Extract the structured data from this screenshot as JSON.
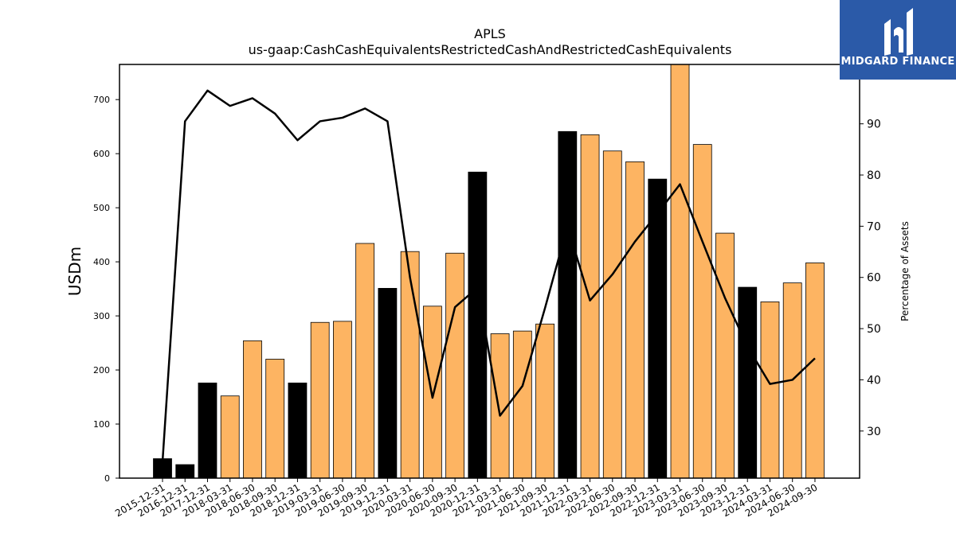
{
  "chart_data": {
    "type": "bar",
    "title": "APLS",
    "subtitle": "us-gaap:CashCashEquivalentsRestrictedCashAndRestrictedCashEquivalents",
    "ylabel": "USDm",
    "y2label": "Percentage of Assets",
    "ylim": [
      0,
      765
    ],
    "y2lim": [
      20.8,
      101.6
    ],
    "yticks": [
      0,
      100,
      200,
      300,
      400,
      500,
      600,
      700
    ],
    "y2ticks": [
      30,
      40,
      50,
      60,
      70,
      80,
      90
    ],
    "categories": [
      "2015-12-31",
      "2016-12-31",
      "2017-12-31",
      "2018-03-31",
      "2018-06-30",
      "2018-09-30",
      "2018-12-31",
      "2019-03-31",
      "2019-06-30",
      "2019-09-30",
      "2019-12-31",
      "2020-03-31",
      "2020-06-30",
      "2020-09-30",
      "2020-12-31",
      "2021-03-31",
      "2021-06-30",
      "2021-09-30",
      "2021-12-31",
      "2022-03-31",
      "2022-06-30",
      "2022-09-30",
      "2022-12-31",
      "2023-03-31",
      "2023-06-30",
      "2023-09-30",
      "2023-12-31",
      "2024-03-31",
      "2024-06-30",
      "2024-09-30"
    ],
    "series": [
      {
        "type": "bar",
        "values": [
          36,
          25,
          176,
          152,
          254,
          220,
          176,
          288,
          290,
          434,
          351,
          419,
          318,
          416,
          566,
          267,
          272,
          285,
          641,
          635,
          605,
          585,
          553,
          765,
          617,
          453,
          353,
          326,
          361,
          398
        ],
        "annual_flags": [
          true,
          true,
          true,
          false,
          false,
          false,
          true,
          false,
          false,
          false,
          true,
          false,
          false,
          false,
          true,
          false,
          false,
          false,
          true,
          false,
          false,
          false,
          true,
          false,
          false,
          false,
          true,
          false,
          false,
          false
        ]
      },
      {
        "type": "line",
        "axis": "right",
        "values": [
          24.0,
          90.5,
          96.5,
          93.5,
          95.0,
          92.0,
          86.8,
          90.5,
          91.2,
          93.0,
          90.5,
          60.0,
          36.5,
          54.2,
          58.0,
          33.0,
          38.8,
          54.0,
          70.0,
          55.5,
          60.6,
          67.0,
          72.5,
          78.2,
          67.0,
          56.0,
          46.5,
          39.2,
          40.0,
          44.2
        ]
      }
    ],
    "colors": {
      "annual_bar": "#000000",
      "quarter_bar": "#fdb462",
      "line": "#000000",
      "logo_bg": "#2b5aa8"
    },
    "grid": false
  },
  "logo": {
    "text": "MIDGARD FINANCE"
  }
}
